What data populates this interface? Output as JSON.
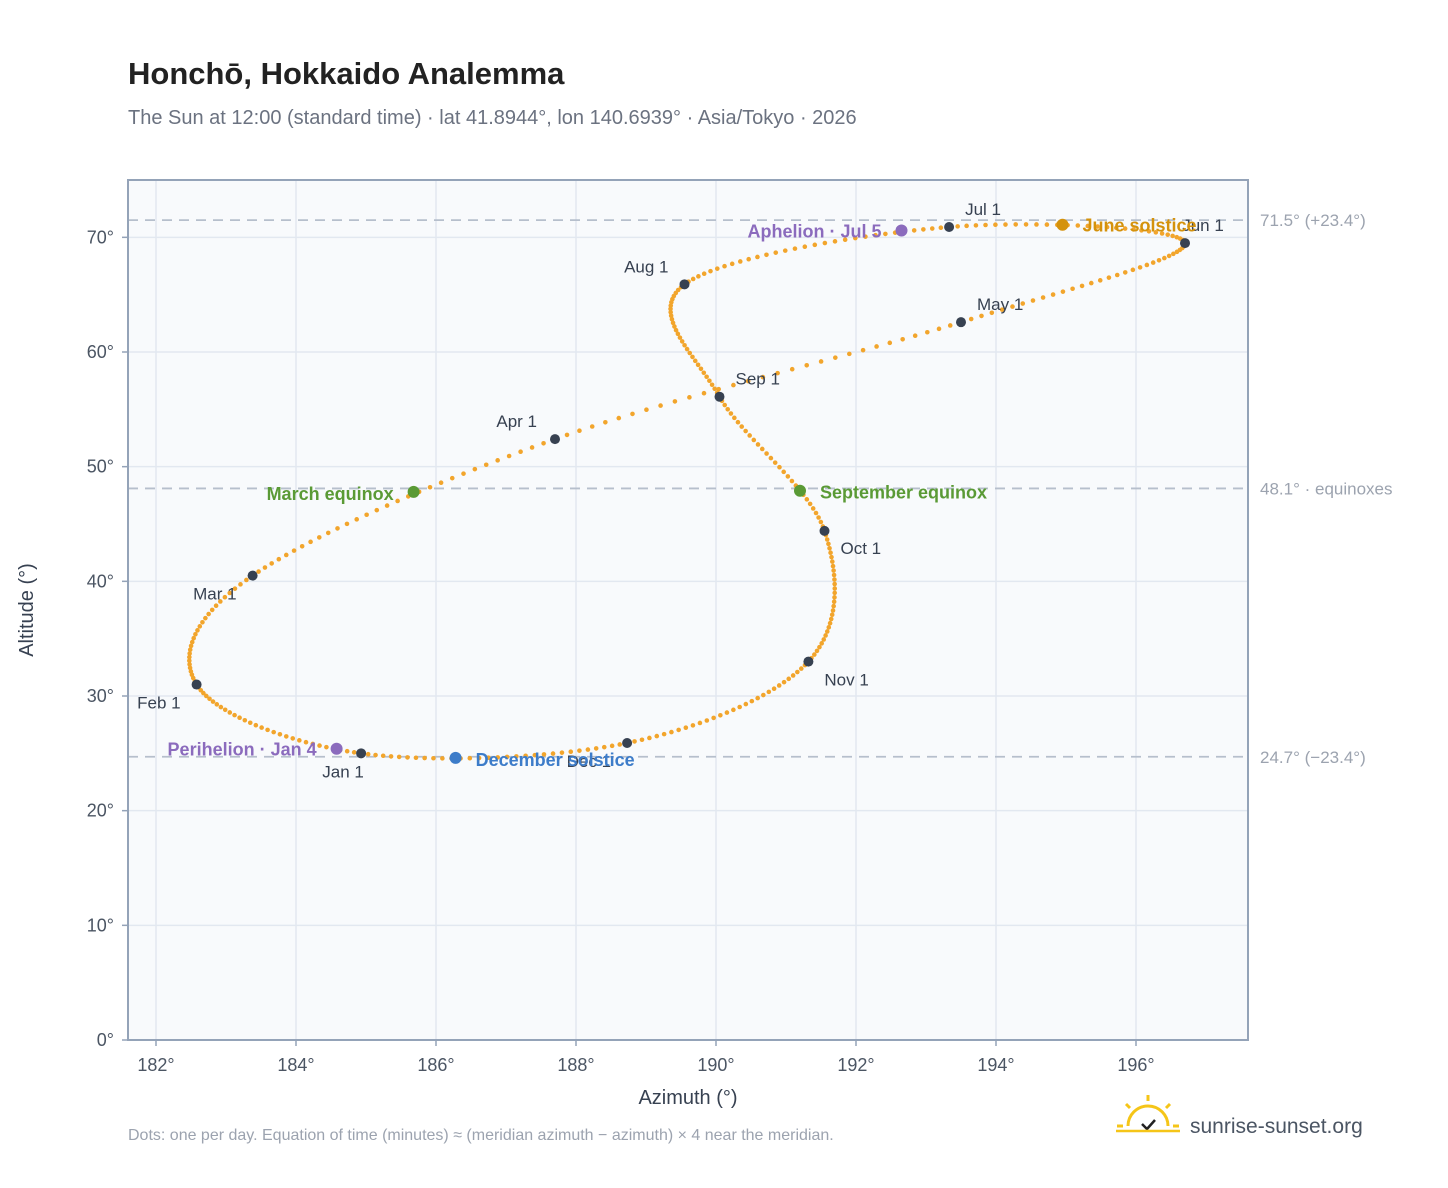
{
  "chart_data": {
    "type": "scatter",
    "title": "Honchō, Hokkaido Analemma",
    "subtitle": "The Sun at 12:00 (standard time) · lat 41.8944°, lon 140.6939° · Asia/Tokyo · 2026",
    "xlabel": "Azimuth (°)",
    "ylabel": "Altitude (°)",
    "xlim": [
      181.6,
      197.6
    ],
    "ylim": [
      0,
      75
    ],
    "x_ticks": [
      182,
      184,
      186,
      188,
      190,
      192,
      194,
      196
    ],
    "x_tick_labels": [
      "182°",
      "184°",
      "186°",
      "188°",
      "190°",
      "192°",
      "194°",
      "196°"
    ],
    "y_ticks": [
      0,
      10,
      20,
      30,
      40,
      50,
      60,
      70
    ],
    "y_tick_labels": [
      "0°",
      "10°",
      "20°",
      "30°",
      "40°",
      "50°",
      "60°",
      "70°"
    ],
    "grid": true,
    "reference_lines": [
      {
        "y": 71.5,
        "label": "71.5° (+23.4°)"
      },
      {
        "y": 48.1,
        "label": "48.1° · equinoxes"
      },
      {
        "y": 24.7,
        "label": "24.7° (−23.4°)"
      }
    ],
    "path_color": "#f2a52c",
    "month_marker_color": "#374151",
    "month_markers": [
      {
        "label": "Jan 1",
        "az": 184.93,
        "alt": 25.0
      },
      {
        "label": "Feb 1",
        "az": 182.58,
        "alt": 31.0
      },
      {
        "label": "Mar 1",
        "az": 183.38,
        "alt": 40.5
      },
      {
        "label": "Apr 1",
        "az": 187.7,
        "alt": 52.4
      },
      {
        "label": "May 1",
        "az": 193.5,
        "alt": 62.6
      },
      {
        "label": "Jun 1",
        "az": 196.7,
        "alt": 69.5
      },
      {
        "label": "Jul 1",
        "az": 193.33,
        "alt": 70.9
      },
      {
        "label": "Aug 1",
        "az": 189.55,
        "alt": 65.9
      },
      {
        "label": "Sep 1",
        "az": 190.05,
        "alt": 56.1
      },
      {
        "label": "Oct 1",
        "az": 191.55,
        "alt": 44.4
      },
      {
        "label": "Nov 1",
        "az": 191.32,
        "alt": 33.0
      },
      {
        "label": "Dec 1",
        "az": 188.73,
        "alt": 25.9
      }
    ],
    "events": [
      {
        "label": "June solstice",
        "az": 194.95,
        "alt": 71.1,
        "color": "#d4920c"
      },
      {
        "label": "Aphelion · Jul 5",
        "az": 192.65,
        "alt": 70.6,
        "color": "#8b6bbd"
      },
      {
        "label": "March equinox",
        "az": 185.68,
        "alt": 47.8,
        "color": "#5a9a35"
      },
      {
        "label": "September equinox",
        "az": 191.2,
        "alt": 47.9,
        "color": "#5a9a35"
      },
      {
        "label": "Perihelion · Jan 4",
        "az": 184.58,
        "alt": 25.4,
        "color": "#8b6bbd"
      },
      {
        "label": "December solstice",
        "az": 186.28,
        "alt": 24.6,
        "color": "#3d7cc9"
      }
    ]
  },
  "footnote": "Dots: one per day. Equation of time (minutes) ≈ (meridian azimuth − azimuth) × 4 near the meridian.",
  "brand": {
    "name": "sunrise-sunset.org",
    "icon": "sun-check-logo"
  }
}
